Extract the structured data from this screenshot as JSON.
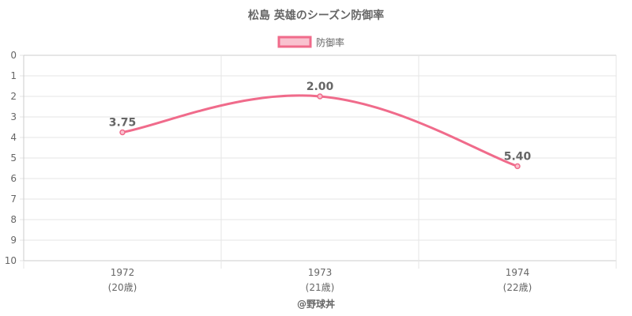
{
  "chart_data": {
    "type": "line",
    "title": "松島 英雄のシーズン防御率",
    "categories": [
      "1972",
      "1973",
      "1974"
    ],
    "category_sublabels": [
      "(20歳)",
      "(21歳)",
      "(22歳)"
    ],
    "series": [
      {
        "name": "防御率",
        "values": [
          3.75,
          2.0,
          5.4
        ],
        "labels": [
          "3.75",
          "2.00",
          "5.40"
        ]
      }
    ],
    "y_ticks": [
      "0",
      "1",
      "2",
      "3",
      "4",
      "5",
      "6",
      "7",
      "8",
      "9",
      "10"
    ],
    "ylim": [
      0,
      10
    ],
    "y_reversed": true,
    "grid": true,
    "legend_position": "top",
    "colors": {
      "line": "#f06b8b",
      "fill": "#f9c2cf",
      "grid": "#e6e6e6",
      "text": "#666666"
    }
  },
  "footer": "@野球丼"
}
